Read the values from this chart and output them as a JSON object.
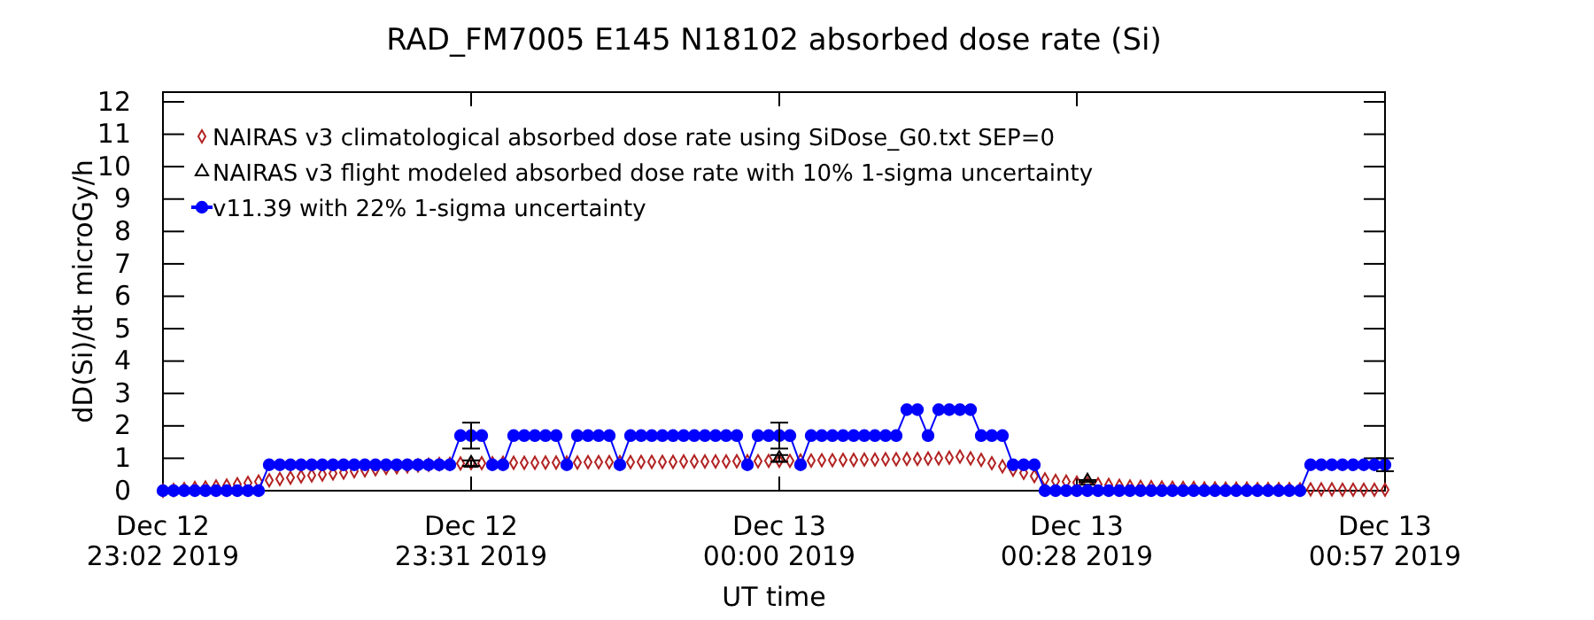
{
  "chart_data": {
    "type": "line",
    "title": "RAD_FM7005  E145 N18102 absorbed dose rate (Si)",
    "xlabel": "UT time",
    "ylabel": "dD(Si)/dt microGy/h",
    "x": [
      "2019-12-12T23:02",
      "2019-12-12T23:03",
      "2019-12-12T23:04",
      "2019-12-12T23:05",
      "2019-12-12T23:06",
      "2019-12-12T23:07",
      "2019-12-12T23:08",
      "2019-12-12T23:09",
      "2019-12-12T23:10",
      "2019-12-12T23:11",
      "2019-12-12T23:12",
      "2019-12-12T23:13",
      "2019-12-12T23:14",
      "2019-12-12T23:15",
      "2019-12-12T23:16",
      "2019-12-12T23:17",
      "2019-12-12T23:18",
      "2019-12-12T23:19",
      "2019-12-12T23:20",
      "2019-12-12T23:21",
      "2019-12-12T23:22",
      "2019-12-12T23:23",
      "2019-12-12T23:24",
      "2019-12-12T23:25",
      "2019-12-12T23:26",
      "2019-12-12T23:27",
      "2019-12-12T23:28",
      "2019-12-12T23:29",
      "2019-12-12T23:30",
      "2019-12-12T23:31",
      "2019-12-12T23:32",
      "2019-12-12T23:33",
      "2019-12-12T23:34",
      "2019-12-12T23:35",
      "2019-12-12T23:36",
      "2019-12-12T23:37",
      "2019-12-12T23:38",
      "2019-12-12T23:39",
      "2019-12-12T23:40",
      "2019-12-12T23:41",
      "2019-12-12T23:42",
      "2019-12-12T23:43",
      "2019-12-12T23:44",
      "2019-12-12T23:45",
      "2019-12-12T23:46",
      "2019-12-12T23:47",
      "2019-12-12T23:48",
      "2019-12-12T23:49",
      "2019-12-12T23:50",
      "2019-12-12T23:51",
      "2019-12-12T23:52",
      "2019-12-12T23:53",
      "2019-12-12T23:54",
      "2019-12-12T23:55",
      "2019-12-12T23:56",
      "2019-12-12T23:57",
      "2019-12-12T23:58",
      "2019-12-12T23:59",
      "2019-12-13T00:00",
      "2019-12-13T00:01",
      "2019-12-13T00:02",
      "2019-12-13T00:03",
      "2019-12-13T00:04",
      "2019-12-13T00:05",
      "2019-12-13T00:06",
      "2019-12-13T00:07",
      "2019-12-13T00:08",
      "2019-12-13T00:09",
      "2019-12-13T00:10",
      "2019-12-13T00:11",
      "2019-12-13T00:12",
      "2019-12-13T00:13",
      "2019-12-13T00:14",
      "2019-12-13T00:15",
      "2019-12-13T00:16",
      "2019-12-13T00:17",
      "2019-12-13T00:18",
      "2019-12-13T00:19",
      "2019-12-13T00:20",
      "2019-12-13T00:21",
      "2019-12-13T00:22",
      "2019-12-13T00:23",
      "2019-12-13T00:24",
      "2019-12-13T00:25",
      "2019-12-13T00:26",
      "2019-12-13T00:27",
      "2019-12-13T00:28",
      "2019-12-13T00:29",
      "2019-12-13T00:30",
      "2019-12-13T00:31",
      "2019-12-13T00:32",
      "2019-12-13T00:33",
      "2019-12-13T00:34",
      "2019-12-13T00:35",
      "2019-12-13T00:36",
      "2019-12-13T00:37",
      "2019-12-13T00:38",
      "2019-12-13T00:39",
      "2019-12-13T00:40",
      "2019-12-13T00:41",
      "2019-12-13T00:42",
      "2019-12-13T00:43",
      "2019-12-13T00:44",
      "2019-12-13T00:45",
      "2019-12-13T00:46",
      "2019-12-13T00:47",
      "2019-12-13T00:48",
      "2019-12-13T00:49",
      "2019-12-13T00:50",
      "2019-12-13T00:51",
      "2019-12-13T00:52",
      "2019-12-13T00:53",
      "2019-12-13T00:54",
      "2019-12-13T00:55",
      "2019-12-13T00:56",
      "2019-12-13T00:57"
    ],
    "series": [
      {
        "name": "NAIRAS v3 climatological absorbed dose rate using SiDose_G0.txt SEP=0",
        "type": "scatter",
        "marker": "diamond",
        "color": "#b22222",
        "values": [
          0,
          0.02,
          0.05,
          0.08,
          0.1,
          0.13,
          0.16,
          0.2,
          0.24,
          0.28,
          0.32,
          0.36,
          0.4,
          0.44,
          0.47,
          0.5,
          0.53,
          0.56,
          0.6,
          0.63,
          0.66,
          0.7,
          0.72,
          0.75,
          0.78,
          0.8,
          0.82,
          0.83,
          0.84,
          0.85,
          0.85,
          0.85,
          0.86,
          0.86,
          0.86,
          0.86,
          0.87,
          0.87,
          0.87,
          0.87,
          0.88,
          0.88,
          0.88,
          0.88,
          0.88,
          0.89,
          0.89,
          0.89,
          0.89,
          0.9,
          0.9,
          0.9,
          0.9,
          0.9,
          0.91,
          0.91,
          0.91,
          0.92,
          0.92,
          0.92,
          0.93,
          0.93,
          0.94,
          0.94,
          0.95,
          0.95,
          0.96,
          0.96,
          0.97,
          0.97,
          0.98,
          0.98,
          0.99,
          1.0,
          1.02,
          1.05,
          1.0,
          0.95,
          0.85,
          0.75,
          0.65,
          0.55,
          0.45,
          0.35,
          0.3,
          0.28,
          0.25,
          0.22,
          0.2,
          0.18,
          0.15,
          0.13,
          0.12,
          0.11,
          0.1,
          0.09,
          0.08,
          0.08,
          0.07,
          0.07,
          0.06,
          0.06,
          0.06,
          0.05,
          0.05,
          0.05,
          0.05,
          0.04,
          0.04,
          0.04,
          0.04,
          0.03,
          0.03,
          0.03,
          0.03,
          0.03
        ]
      },
      {
        "name": "NAIRAS v3 flight modeled absorbed dose rate with 10% 1-sigma uncertainty",
        "type": "scatter",
        "marker": "triangle",
        "color": "#000000",
        "x": [
          "2019-12-12T23:31",
          "2019-12-13T00:00",
          "2019-12-13T00:29"
        ],
        "values": [
          0.85,
          1.0,
          0.3
        ],
        "errors": [
          0.085,
          0.1,
          0.03
        ]
      },
      {
        "name": "v11.39 with 22% 1-sigma uncertainty",
        "marker": "circle",
        "color": "#0000ff",
        "values": [
          0,
          0,
          0,
          0,
          0,
          0,
          0,
          0,
          0,
          0,
          0.8,
          0.8,
          0.8,
          0.8,
          0.8,
          0.8,
          0.8,
          0.8,
          0.8,
          0.8,
          0.8,
          0.8,
          0.8,
          0.8,
          0.8,
          0.8,
          0.8,
          0.8,
          1.7,
          1.7,
          1.7,
          0.8,
          0.8,
          1.7,
          1.7,
          1.7,
          1.7,
          1.7,
          0.8,
          1.7,
          1.7,
          1.7,
          1.7,
          0.8,
          1.7,
          1.7,
          1.7,
          1.7,
          1.7,
          1.7,
          1.7,
          1.7,
          1.7,
          1.7,
          1.7,
          0.8,
          1.7,
          1.7,
          1.7,
          1.7,
          0.8,
          1.7,
          1.7,
          1.7,
          1.7,
          1.7,
          1.7,
          1.7,
          1.7,
          1.7,
          2.5,
          2.5,
          1.7,
          2.5,
          2.5,
          2.5,
          2.5,
          1.7,
          1.7,
          1.7,
          0.8,
          0.8,
          0.8,
          0,
          0,
          0,
          0,
          0,
          0,
          0,
          0,
          0,
          0,
          0,
          0,
          0,
          0,
          0,
          0,
          0,
          0,
          0,
          0,
          0,
          0,
          0,
          0,
          0,
          0.8,
          0.8,
          0.8,
          0.8,
          0.8,
          0.8,
          0.8,
          0.8
        ],
        "errors": [
          null,
          null,
          null,
          null,
          null,
          null,
          null,
          null,
          null,
          null,
          null,
          null,
          null,
          null,
          null,
          null,
          null,
          null,
          null,
          null,
          null,
          null,
          null,
          null,
          null,
          null,
          null,
          null,
          null,
          0.4,
          null,
          null,
          null,
          null,
          null,
          null,
          null,
          null,
          null,
          null,
          null,
          null,
          null,
          null,
          null,
          null,
          null,
          null,
          null,
          null,
          null,
          null,
          null,
          null,
          null,
          null,
          null,
          null,
          0.4,
          null,
          null,
          null,
          null,
          null,
          null,
          null,
          null,
          null,
          null,
          null,
          null,
          null,
          null,
          null,
          null,
          null,
          null,
          null,
          null,
          null,
          null,
          null,
          null,
          null,
          null,
          null,
          null,
          null,
          null,
          null,
          null,
          null,
          null,
          null,
          null,
          null,
          null,
          null,
          null,
          null,
          null,
          null,
          null,
          null,
          null,
          null,
          null,
          null,
          null,
          null,
          null,
          null,
          null,
          null,
          null,
          0.2
        ]
      }
    ],
    "xlim": [
      "2019-12-12T23:02",
      "2019-12-13T00:57"
    ],
    "xticks": [
      {
        "value": "2019-12-12T23:02",
        "label": "Dec 12\n23:02 2019"
      },
      {
        "value": "2019-12-12T23:31",
        "label": "Dec 12\n23:31 2019"
      },
      {
        "value": "2019-12-13T00:00",
        "label": "Dec 13\n00:00 2019"
      },
      {
        "value": "2019-12-13T00:28",
        "label": "Dec 13\n00:28 2019"
      },
      {
        "value": "2019-12-13T00:57",
        "label": "Dec 13\n00:57 2019"
      }
    ],
    "ylim": [
      0,
      12.3
    ],
    "yticks": [
      0,
      1,
      2,
      3,
      4,
      5,
      6,
      7,
      8,
      9,
      10,
      11,
      12
    ],
    "legend": "top left"
  }
}
